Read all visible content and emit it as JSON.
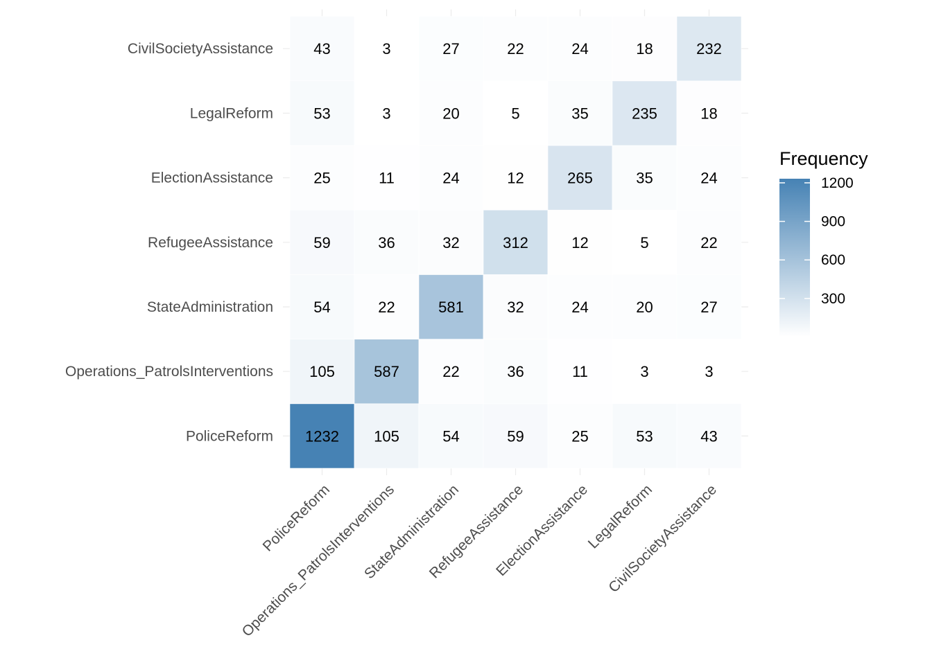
{
  "chart_data": {
    "type": "heatmap",
    "x_categories": [
      "PoliceReform",
      "Operations_PatrolsInterventions",
      "StateAdministration",
      "RefugeeAssistance",
      "ElectionAssistance",
      "LegalReform",
      "CivilSocietyAssistance"
    ],
    "y_categories": [
      "PoliceReform",
      "Operations_PatrolsInterventions",
      "StateAdministration",
      "RefugeeAssistance",
      "ElectionAssistance",
      "LegalReform",
      "CivilSocietyAssistance"
    ],
    "values": [
      [
        1232,
        105,
        54,
        59,
        25,
        53,
        43
      ],
      [
        105,
        587,
        22,
        36,
        11,
        3,
        3
      ],
      [
        54,
        22,
        581,
        32,
        24,
        20,
        27
      ],
      [
        59,
        36,
        32,
        312,
        12,
        5,
        22
      ],
      [
        25,
        11,
        24,
        12,
        265,
        35,
        24
      ],
      [
        53,
        3,
        20,
        5,
        35,
        235,
        18
      ],
      [
        43,
        3,
        27,
        22,
        24,
        18,
        232
      ]
    ],
    "legend": {
      "title": "Frequency",
      "ticks": [
        300,
        600,
        900,
        1200
      ],
      "low_color": "#ffffff",
      "high_color": "#4682b4",
      "min": 3,
      "max": 1232
    },
    "grid": true
  }
}
